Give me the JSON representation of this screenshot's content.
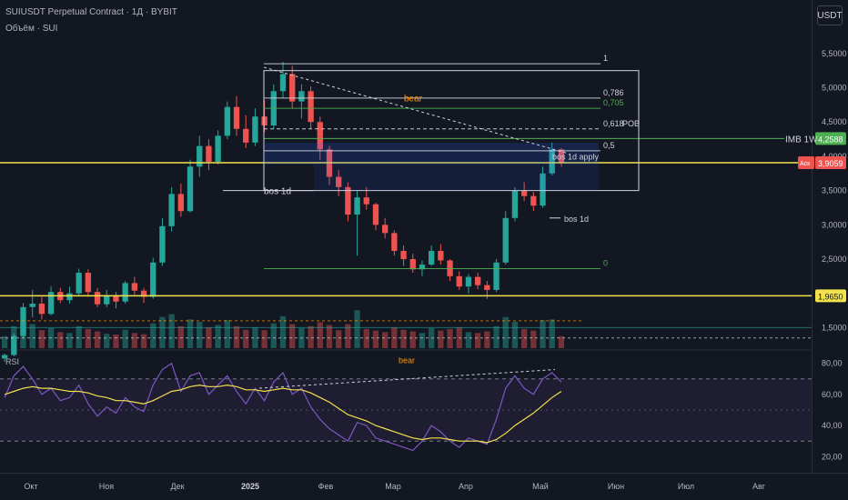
{
  "header": {
    "title": "SUIUSDT Perpetual Contract · 1Д · BYBIT",
    "volume": "Объём · SUI",
    "currency": "USDT"
  },
  "price_axis": {
    "ticks": [
      "5,5000",
      "5,0000",
      "4,5000",
      "4,0000",
      "3,5000",
      "3,0000",
      "2,5000",
      "2,0000",
      "1,5000"
    ],
    "values": [
      5.5,
      5.0,
      4.5,
      4.0,
      3.5,
      3.0,
      2.5,
      2.0,
      1.5
    ]
  },
  "rsi_axis": {
    "label": "RSI",
    "ticks": [
      "80,00",
      "60,00",
      "40,00",
      "20,00"
    ],
    "values": [
      80,
      60,
      40,
      20
    ],
    "band_upper": 70,
    "band_lower": 30,
    "mid": 50
  },
  "time_axis": {
    "labels": [
      "Окт",
      "Ноя",
      "Дек",
      "2025",
      "Фев",
      "Мар",
      "Апр",
      "Май",
      "Июн",
      "Июл",
      "Авг"
    ],
    "bold_index": 3
  },
  "badges": {
    "imb_label": "IMB 1W",
    "imb_value": "4,2588",
    "ask_label": "Аск",
    "ask_value": "3,9059",
    "support_value": "1,9650"
  },
  "annotations": {
    "bear_price": "bear",
    "bear_rsi": "bear",
    "bos_left": "bos 1d",
    "bos_right": "bos 1d",
    "bos_apply": "bos 1d apply"
  },
  "fib": {
    "levels": [
      {
        "label": "1",
        "price": 5.35,
        "color": "#d1d4dc"
      },
      {
        "label": "0,786",
        "price": 4.85,
        "color": "#d1d4dc"
      },
      {
        "label": "0,705",
        "price": 4.7,
        "color": "#4caf50"
      },
      {
        "label": "0,618",
        "price": 4.4,
        "color": "#d1d4dc"
      },
      {
        "label": "0,5",
        "price": 4.08,
        "color": "#d1d4dc"
      },
      {
        "label": "0",
        "price": 2.36,
        "color": "#4caf50"
      }
    ],
    "pob_label": "POB"
  },
  "chart_data": {
    "type": "candlestick",
    "symbol": "SUIUSDT",
    "interval": "1D",
    "ylim": [
      1.2,
      5.75
    ],
    "rsi_ylim": [
      12,
      88
    ],
    "legend": "none",
    "grid": false,
    "candles": [
      [
        1.05,
        1.12,
        1.0,
        1.1
      ],
      [
        1.1,
        1.42,
        1.08,
        1.38
      ],
      [
        1.38,
        1.86,
        1.35,
        1.8
      ],
      [
        1.8,
        2.05,
        1.65,
        1.85
      ],
      [
        1.85,
        1.95,
        1.62,
        1.7
      ],
      [
        1.7,
        2.1,
        1.68,
        2.02
      ],
      [
        2.02,
        2.08,
        1.86,
        1.9
      ],
      [
        1.9,
        2.1,
        1.85,
        2.0
      ],
      [
        2.0,
        2.36,
        1.96,
        2.3
      ],
      [
        2.3,
        2.35,
        1.95,
        2.02
      ],
      [
        2.02,
        2.08,
        1.8,
        1.84
      ],
      [
        1.84,
        2.05,
        1.8,
        1.96
      ],
      [
        1.96,
        2.02,
        1.78,
        1.88
      ],
      [
        1.88,
        2.18,
        1.85,
        2.15
      ],
      [
        2.15,
        2.24,
        1.98,
        2.04
      ],
      [
        2.04,
        2.08,
        1.86,
        1.95
      ],
      [
        1.95,
        2.52,
        1.92,
        2.45
      ],
      [
        2.45,
        3.1,
        2.4,
        2.98
      ],
      [
        2.98,
        3.55,
        2.9,
        3.45
      ],
      [
        3.45,
        3.6,
        3.12,
        3.2
      ],
      [
        3.2,
        3.95,
        3.18,
        3.85
      ],
      [
        3.85,
        4.3,
        3.7,
        4.15
      ],
      [
        4.15,
        4.25,
        3.8,
        3.92
      ],
      [
        3.92,
        4.38,
        3.88,
        4.3
      ],
      [
        4.3,
        4.8,
        4.25,
        4.72
      ],
      [
        4.72,
        4.88,
        4.3,
        4.4
      ],
      [
        4.4,
        4.6,
        4.12,
        4.2
      ],
      [
        4.2,
        4.7,
        4.15,
        4.58
      ],
      [
        4.58,
        4.82,
        4.35,
        4.45
      ],
      [
        4.45,
        5.05,
        4.4,
        4.95
      ],
      [
        4.95,
        5.38,
        4.85,
        5.2
      ],
      [
        5.2,
        5.32,
        4.7,
        4.8
      ],
      [
        4.8,
        5.05,
        4.55,
        4.95
      ],
      [
        4.95,
        5.02,
        4.4,
        4.5
      ],
      [
        4.5,
        4.58,
        3.95,
        4.1
      ],
      [
        4.1,
        4.15,
        3.58,
        3.7
      ],
      [
        3.7,
        3.8,
        3.42,
        3.55
      ],
      [
        3.55,
        3.62,
        3.05,
        3.15
      ],
      [
        3.15,
        3.5,
        2.55,
        3.4
      ],
      [
        3.4,
        3.55,
        3.22,
        3.3
      ],
      [
        3.3,
        3.32,
        2.92,
        3.0
      ],
      [
        3.0,
        3.1,
        2.8,
        2.88
      ],
      [
        2.88,
        2.92,
        2.55,
        2.62
      ],
      [
        2.62,
        2.7,
        2.4,
        2.5
      ],
      [
        2.5,
        2.58,
        2.3,
        2.35
      ],
      [
        2.35,
        2.48,
        2.25,
        2.42
      ],
      [
        2.42,
        2.7,
        2.4,
        2.62
      ],
      [
        2.62,
        2.72,
        2.42,
        2.48
      ],
      [
        2.48,
        2.5,
        2.18,
        2.25
      ],
      [
        2.25,
        2.32,
        2.05,
        2.1
      ],
      [
        2.1,
        2.28,
        2.0,
        2.24
      ],
      [
        2.24,
        2.3,
        2.06,
        2.12
      ],
      [
        2.12,
        2.18,
        1.92,
        2.05
      ],
      [
        2.05,
        2.5,
        2.02,
        2.45
      ],
      [
        2.45,
        3.2,
        2.42,
        3.1
      ],
      [
        3.1,
        3.55,
        3.05,
        3.5
      ],
      [
        3.5,
        3.62,
        3.35,
        3.42
      ],
      [
        3.42,
        3.48,
        3.2,
        3.28
      ],
      [
        3.28,
        3.85,
        3.25,
        3.75
      ],
      [
        3.75,
        4.2,
        3.72,
        4.1
      ],
      [
        4.1,
        4.12,
        3.85,
        3.91
      ]
    ],
    "volume": [
      0.3,
      0.55,
      0.7,
      0.6,
      0.45,
      0.5,
      0.4,
      0.38,
      0.55,
      0.48,
      0.42,
      0.36,
      0.34,
      0.46,
      0.38,
      0.35,
      0.62,
      0.78,
      0.85,
      0.55,
      0.72,
      0.66,
      0.52,
      0.58,
      0.7,
      0.55,
      0.46,
      0.52,
      0.45,
      0.62,
      0.8,
      0.6,
      0.5,
      0.55,
      0.65,
      0.58,
      0.45,
      0.6,
      0.95,
      0.48,
      0.44,
      0.4,
      0.52,
      0.46,
      0.42,
      0.38,
      0.5,
      0.44,
      0.48,
      0.52,
      0.4,
      0.38,
      0.42,
      0.55,
      0.78,
      0.66,
      0.48,
      0.44,
      0.7,
      0.72,
      0.3
    ],
    "rsi": [
      58,
      72,
      78,
      70,
      60,
      64,
      56,
      58,
      66,
      54,
      46,
      52,
      48,
      58,
      52,
      49,
      66,
      76,
      80,
      62,
      72,
      74,
      60,
      66,
      72,
      62,
      54,
      64,
      56,
      68,
      74,
      60,
      64,
      52,
      44,
      38,
      34,
      30,
      42,
      40,
      32,
      30,
      28,
      26,
      24,
      30,
      40,
      36,
      30,
      26,
      32,
      30,
      28,
      44,
      64,
      72,
      64,
      60,
      70,
      74,
      68
    ],
    "rsi_ma": [
      60,
      62,
      64,
      65,
      64,
      64,
      63,
      62,
      62,
      61,
      59,
      58,
      56,
      56,
      55,
      54,
      56,
      59,
      62,
      63,
      65,
      66,
      65,
      65,
      66,
      65,
      63,
      63,
      62,
      63,
      64,
      63,
      63,
      61,
      58,
      55,
      51,
      47,
      45,
      43,
      40,
      38,
      36,
      34,
      32,
      31,
      32,
      32,
      31,
      30,
      30,
      30,
      29,
      31,
      35,
      40,
      44,
      48,
      53,
      58,
      62
    ]
  }
}
